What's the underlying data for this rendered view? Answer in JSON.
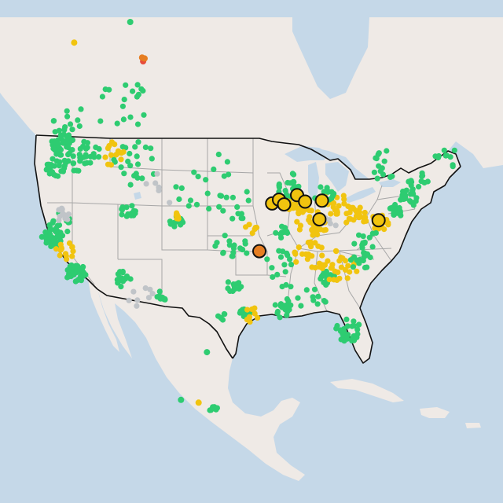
{
  "map": {
    "style": {
      "water": "#c5d8e8",
      "land": "#efeae6",
      "land_mountain": "#e2dcd6",
      "country_border": "#111111",
      "state_border": "#a7a7a7",
      "page_background": "#ffffff"
    },
    "status_colors": {
      "good": "#2ecc71",
      "moderate": "#f1c40f",
      "unhealthy_sensitive": "#e67e22",
      "unhealthy": "#e74c3c",
      "no_data": "#c0c4c8"
    },
    "highlight_markers": [
      {
        "status": "moderate",
        "lat": 41.6,
        "lon": -91.5
      },
      {
        "status": "moderate",
        "lat": 42.0,
        "lon": -90.5
      },
      {
        "status": "moderate",
        "lat": 41.5,
        "lon": -89.8
      },
      {
        "status": "moderate",
        "lat": 42.5,
        "lon": -87.9
      },
      {
        "status": "moderate",
        "lat": 41.8,
        "lon": -86.8
      },
      {
        "status": "moderate",
        "lat": 41.9,
        "lon": -84.4
      },
      {
        "status": "moderate",
        "lat": 39.9,
        "lon": -84.9
      },
      {
        "status": "moderate",
        "lat": 39.8,
        "lon": -76.6
      },
      {
        "status": "unhealthy_sensitive",
        "lat": 36.5,
        "lon": -93.4
      }
    ],
    "site_clusters": [
      {
        "status": "good",
        "lat": 47.8,
        "lon": -122.5,
        "spread": 1.8,
        "count": 40
      },
      {
        "status": "good",
        "lat": 46.5,
        "lon": -119.0,
        "spread": 2.5,
        "count": 30
      },
      {
        "status": "good",
        "lat": 45.5,
        "lon": -122.8,
        "spread": 1.5,
        "count": 25
      },
      {
        "status": "good",
        "lat": 37.8,
        "lon": -122.0,
        "spread": 1.6,
        "count": 35
      },
      {
        "status": "good",
        "lat": 34.2,
        "lon": -118.2,
        "spread": 1.4,
        "count": 40
      },
      {
        "status": "good",
        "lat": 39.5,
        "lon": -121.0,
        "spread": 1.8,
        "count": 20
      },
      {
        "status": "moderate",
        "lat": 36.5,
        "lon": -120.0,
        "spread": 1.5,
        "count": 14
      },
      {
        "status": "good",
        "lat": 40.7,
        "lon": -111.9,
        "spread": 1.2,
        "count": 14
      },
      {
        "status": "good",
        "lat": 33.5,
        "lon": -112.0,
        "spread": 1.2,
        "count": 16
      },
      {
        "status": "good",
        "lat": 39.7,
        "lon": -105.0,
        "spread": 1.0,
        "count": 14
      },
      {
        "status": "moderate",
        "lat": 40.2,
        "lon": -104.8,
        "spread": 0.6,
        "count": 6
      },
      {
        "status": "good",
        "lat": 31.8,
        "lon": -106.4,
        "spread": 0.8,
        "count": 8
      },
      {
        "status": "good",
        "lat": 29.8,
        "lon": -95.4,
        "spread": 1.0,
        "count": 16
      },
      {
        "status": "moderate",
        "lat": 29.7,
        "lon": -94.5,
        "spread": 1.2,
        "count": 8
      },
      {
        "status": "good",
        "lat": 32.8,
        "lon": -96.9,
        "spread": 1.0,
        "count": 12
      },
      {
        "status": "good",
        "lat": 29.5,
        "lon": -98.5,
        "spread": 0.6,
        "count": 6
      },
      {
        "status": "good",
        "lat": 30.3,
        "lon": -90.0,
        "spread": 1.6,
        "count": 18
      },
      {
        "status": "good",
        "lat": 28.0,
        "lon": -81.8,
        "spread": 1.8,
        "count": 30
      },
      {
        "status": "good",
        "lat": 33.7,
        "lon": -84.4,
        "spread": 1.2,
        "count": 16
      },
      {
        "status": "moderate",
        "lat": 34.8,
        "lon": -82.5,
        "spread": 2.5,
        "count": 30
      },
      {
        "status": "moderate",
        "lat": 36.0,
        "lon": -86.5,
        "spread": 2.2,
        "count": 22
      },
      {
        "status": "good",
        "lat": 38.6,
        "lon": -90.2,
        "spread": 1.0,
        "count": 12
      },
      {
        "status": "moderate",
        "lat": 39.5,
        "lon": -86.0,
        "spread": 2.2,
        "count": 30
      },
      {
        "status": "moderate",
        "lat": 41.5,
        "lon": -88.0,
        "spread": 1.6,
        "count": 28
      },
      {
        "status": "good",
        "lat": 43.5,
        "lon": -89.0,
        "spread": 2.0,
        "count": 20
      },
      {
        "status": "moderate",
        "lat": 41.8,
        "lon": -82.8,
        "spread": 2.0,
        "count": 22
      },
      {
        "status": "good",
        "lat": 42.5,
        "lon": -84.0,
        "spread": 1.5,
        "count": 16
      },
      {
        "status": "moderate",
        "lat": 40.2,
        "lon": -80.0,
        "spread": 1.8,
        "count": 24
      },
      {
        "status": "moderate",
        "lat": 39.5,
        "lon": -76.5,
        "spread": 1.3,
        "count": 26
      },
      {
        "status": "good",
        "lat": 40.8,
        "lon": -74.0,
        "spread": 1.0,
        "count": 22
      },
      {
        "status": "good",
        "lat": 42.3,
        "lon": -72.0,
        "spread": 1.4,
        "count": 22
      },
      {
        "status": "good",
        "lat": 44.0,
        "lon": -70.5,
        "spread": 1.6,
        "count": 12
      },
      {
        "status": "good",
        "lat": 37.5,
        "lon": -78.5,
        "spread": 2.0,
        "count": 14
      },
      {
        "status": "good",
        "lat": 35.5,
        "lon": -79.5,
        "spread": 1.6,
        "count": 14
      },
      {
        "status": "good",
        "lat": 37.0,
        "lon": -97.5,
        "spread": 2.6,
        "count": 18
      },
      {
        "status": "good",
        "lat": 44.0,
        "lon": -101.0,
        "spread": 5.0,
        "count": 20
      },
      {
        "status": "good",
        "lat": 46.0,
        "lon": -111.5,
        "spread": 3.5,
        "count": 22
      },
      {
        "status": "moderate",
        "lat": 47.0,
        "lon": -114.5,
        "spread": 2.0,
        "count": 14
      },
      {
        "status": "good",
        "lat": 52.0,
        "lon": -114.0,
        "spread": 4.0,
        "count": 18
      },
      {
        "status": "good",
        "lat": 50.5,
        "lon": -122.0,
        "spread": 2.5,
        "count": 14
      },
      {
        "status": "good",
        "lat": 34.5,
        "lon": -90.5,
        "spread": 3.0,
        "count": 16
      },
      {
        "status": "good",
        "lat": 31.5,
        "lon": -86.5,
        "spread": 2.0,
        "count": 10
      },
      {
        "status": "good",
        "lat": 45.8,
        "lon": -75.0,
        "spread": 2.5,
        "count": 14
      },
      {
        "status": "good",
        "lat": 46.5,
        "lon": -66.0,
        "spread": 2.0,
        "count": 10
      },
      {
        "status": "good",
        "lat": 19.5,
        "lon": -99.2,
        "spread": 0.6,
        "count": 8
      },
      {
        "status": "good",
        "lat": 41.5,
        "lon": -96.5,
        "spread": 2.5,
        "count": 10
      },
      {
        "status": "moderate",
        "lat": 39.0,
        "lon": -94.6,
        "spread": 1.0,
        "count": 6
      },
      {
        "status": "no_data",
        "lat": 40.2,
        "lon": -121.5,
        "spread": 1.6,
        "count": 12
      },
      {
        "status": "no_data",
        "lat": 31.5,
        "lon": -109.5,
        "spread": 2.0,
        "count": 8
      },
      {
        "status": "no_data",
        "lat": 39.5,
        "lon": -84.0,
        "spread": 1.5,
        "count": 6
      },
      {
        "status": "no_data",
        "lat": 43.0,
        "lon": -108.0,
        "spread": 3.0,
        "count": 6
      }
    ],
    "single_sites": [
      {
        "status": "unhealthy",
        "lat": 56.8,
        "lon": -111.4
      },
      {
        "status": "unhealthy_sensitive",
        "lat": 57.2,
        "lon": -111.6
      },
      {
        "status": "unhealthy_sensitive",
        "lat": 57.1,
        "lon": -111.2
      },
      {
        "status": "moderate",
        "lat": 58.8,
        "lon": -122.7
      },
      {
        "status": "good",
        "lat": 61.0,
        "lon": -114.0
      },
      {
        "status": "good",
        "lat": 58.5,
        "lon": -134.5
      },
      {
        "status": "moderate",
        "lat": 58.5,
        "lon": -135.4
      },
      {
        "status": "moderate",
        "lat": 20.3,
        "lon": -101.2
      },
      {
        "status": "good",
        "lat": 20.6,
        "lon": -103.4
      },
      {
        "status": "good",
        "lat": 25.7,
        "lon": -100.3
      }
    ]
  }
}
